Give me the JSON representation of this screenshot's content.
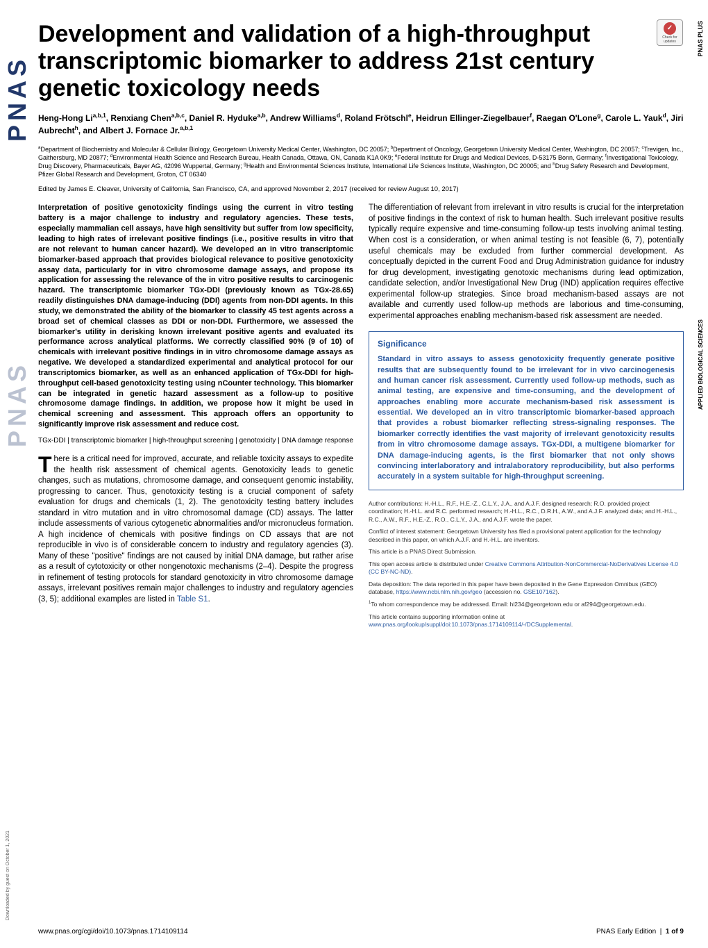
{
  "badges": {
    "pnas_plus": "PNAS PLUS",
    "section": "APPLIED BIOLOGICAL SCIENCES",
    "check_updates_label": "Check for updates",
    "check_mark": "✓"
  },
  "sidebar": {
    "pnas_logo": "PNAS",
    "download_note": "Downloaded by guest on October 1, 2021"
  },
  "title": "Development and validation of a high-throughput transcriptomic biomarker to address 21st century genetic toxicology needs",
  "authors_html": "Heng-Hong Li<sup>a,b,1</sup>, Renxiang Chen<sup>a,b,c</sup>, Daniel R. Hyduke<sup>a,b</sup>, Andrew Williams<sup>d</sup>, Roland Frötschl<sup>e</sup>, Heidrun Ellinger-Ziegelbauer<sup>f</sup>, Raegan O'Lone<sup>g</sup>, Carole L. Yauk<sup>d</sup>, Jiri Aubrecht<sup>h</sup>, and Albert J. Fornace Jr.<sup>a,b,1</sup>",
  "affiliations": "<sup>a</sup>Department of Biochemistry and Molecular & Cellular Biology, Georgetown University Medical Center, Washington, DC 20057; <sup>b</sup>Department of Oncology, Georgetown University Medical Center, Washington, DC 20057; <sup>c</sup>Trevigen, Inc., Gaithersburg, MD 20877; <sup>d</sup>Environmental Health Science and Research Bureau, Health Canada, Ottawa, ON, Canada K1A 0K9; <sup>e</sup>Federal Institute for Drugs and Medical Devices, D-53175 Bonn, Germany; <sup>f</sup>Investigational Toxicology, Drug Discovery, Pharmaceuticals, Bayer AG, 42096 Wuppertal, Germany; <sup>g</sup>Health and Environmental Sciences Institute, International Life Sciences Institute, Washington, DC 20005; and <sup>h</sup>Drug Safety Research and Development, Pfizer Global Research and Development, Groton, CT 06340",
  "edited_by": "Edited by James E. Cleaver, University of California, San Francisco, CA, and approved November 2, 2017 (received for review August 10, 2017)",
  "abstract": "Interpretation of positive genotoxicity findings using the current in vitro testing battery is a major challenge to industry and regulatory agencies. These tests, especially mammalian cell assays, have high sensitivity but suffer from low specificity, leading to high rates of irrelevant positive findings (i.e., positive results in vitro that are not relevant to human cancer hazard). We developed an in vitro transcriptomic biomarker-based approach that provides biological relevance to positive genotoxicity assay data, particularly for in vitro chromosome damage assays, and propose its application for assessing the relevance of the in vitro positive results to carcinogenic hazard. The transcriptomic biomarker TGx-DDI (previously known as TGx-28.65) readily distinguishes DNA damage-inducing (DDI) agents from non-DDI agents. In this study, we demonstrated the ability of the biomarker to classify 45 test agents across a broad set of chemical classes as DDI or non-DDI. Furthermore, we assessed the biomarker's utility in derisking known irrelevant positive agents and evaluated its performance across analytical platforms. We correctly classified 90% (9 of 10) of chemicals with irrelevant positive findings in in vitro chromosome damage assays as negative. We developed a standardized experimental and analytical protocol for our transcriptomics biomarker, as well as an enhanced application of TGx-DDI for high-throughput cell-based genotoxicity testing using nCounter technology. This biomarker can be integrated in genetic hazard assessment as a follow-up to positive chromosome damage findings. In addition, we propose how it might be used in chemical screening and assessment. This approach offers an opportunity to significantly improve risk assessment and reduce cost.",
  "keywords": "TGx-DDI | transcriptomic biomarker | high-throughput screening | genotoxicity | DNA damage response",
  "body_dropcap": "T",
  "body_text_left": "here is a critical need for improved, accurate, and reliable toxicity assays to expedite the health risk assessment of chemical agents. Genotoxicity leads to genetic changes, such as mutations, chromosome damage, and consequent genomic instability, progressing to cancer. Thus, genotoxicity testing is a crucial component of safety evaluation for drugs and chemicals (1, 2). The genotoxicity testing battery includes standard in vitro mutation and in vitro chromosomal damage (CD) assays. The latter include assessments of various cytogenetic abnormalities and/or micronucleus formation. A high incidence of chemicals with positive findings on CD assays that are not reproducible in vivo is of considerable concern to industry and regulatory agencies (3). Many of these \"positive\" findings are not caused by initial DNA damage, but rather arise as a result of cytotoxicity or other nongenotoxic mechanisms (2–4). Despite the progress in refinement of testing protocols for standard genotoxicity in vitro chromosome damage assays, irrelevant positives remain major challenges to industry and regulatory agencies (3, 5); additional examples are listed in ",
  "table_s1_link": "Table S1",
  "body_text_left_end": ".",
  "intro_right": "The differentiation of relevant from irrelevant in vitro results is crucial for the interpretation of positive findings in the context of risk to human health. Such irrelevant positive results typically require expensive and time-consuming follow-up tests involving animal testing. When cost is a consideration, or when animal testing is not feasible (6, 7), potentially useful chemicals may be excluded from further commercial development. As conceptually depicted in the current Food and Drug Administration guidance for industry for drug development, investigating genotoxic mechanisms during lead optimization, candidate selection, and/or Investigational New Drug (IND) application requires effective experimental follow-up strategies. Since broad mechanism-based assays are not available and currently used follow-up methods are laborious and time-consuming, experimental approaches enabling mechanism-based risk assessment are needed.",
  "significance": {
    "heading": "Significance",
    "text": "Standard in vitro assays to assess genotoxicity frequently generate positive results that are subsequently found to be irrelevant for in vivo carcinogenesis and human cancer risk assessment. Currently used follow-up methods, such as animal testing, are expensive and time-consuming, and the development of approaches enabling more accurate mechanism-based risk assessment is essential. We developed an in vitro transcriptomic biomarker-based approach that provides a robust biomarker reflecting stress-signaling responses. The biomarker correctly identifies the vast majority of irrelevant genotoxicity results from in vitro chromosome damage assays. TGx-DDI, a multigene biomarker for DNA damage-inducing agents, is the first biomarker that not only shows convincing interlaboratory and intralaboratory reproducibility, but also performs accurately in a system suitable for high-throughput screening."
  },
  "meta": {
    "contributions": "Author contributions: H.-H.L., R.F., H.E.-Z., C.L.Y., J.A., and A.J.F. designed research; R.O. provided project coordination; H.-H.L. and R.C. performed research; H.-H.L., R.C., D.R.H., A.W., and A.J.F. analyzed data; and H.-H.L., R.C., A.W., R.F., H.E.-Z., R.O., C.L.Y., J.A., and A.J.F. wrote the paper.",
    "conflict": "Conflict of interest statement: Georgetown University has filed a provisional patent application for the technology described in this paper, on which A.J.F. and H.-H.L. are inventors.",
    "direct": "This article is a PNAS Direct Submission.",
    "license_prefix": "This open access article is distributed under ",
    "license_link": "Creative Commons Attribution-NonCommercial-NoDerivatives License 4.0 (CC BY-NC-ND)",
    "license_suffix": ".",
    "data_prefix": "Data deposition: The data reported in this paper have been deposited in the Gene Expression Omnibus (GEO) database, ",
    "data_link": "https://www.ncbi.nlm.nih.gov/geo",
    "data_mid": " (accession no. ",
    "accession_link": "GSE107162",
    "data_suffix": ").",
    "correspondence": "<sup>1</sup>To whom correspondence may be addressed. Email: hl234@georgetown.edu or af294@georgetown.edu.",
    "supp_prefix": "This article contains supporting information online at ",
    "supp_link": "www.pnas.org/lookup/suppl/doi:10.1073/pnas.1714109114/-/DCSupplemental",
    "supp_suffix": "."
  },
  "footer": {
    "doi": "www.pnas.org/cgi/doi/10.1073/pnas.1714109114",
    "page": "PNAS Early Edition | 1 of 9"
  },
  "colors": {
    "blue": "#2b5aa0",
    "logo_blue": "#22386a",
    "check_red": "#c94141",
    "text": "#000000",
    "background": "#ffffff"
  },
  "fonts": {
    "title_size": 34,
    "body_size": 11.5,
    "abstract_size": 11,
    "meta_size": 8.5
  }
}
